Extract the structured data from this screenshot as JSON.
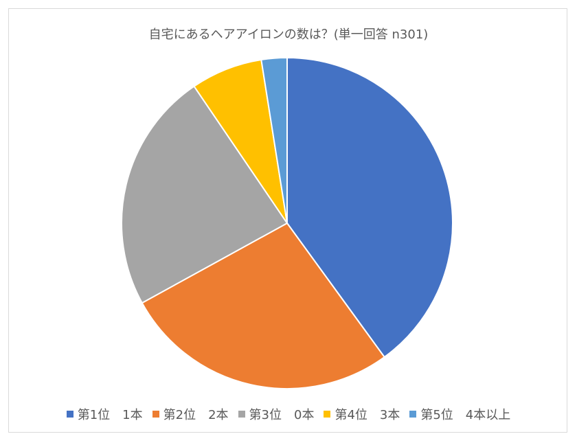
{
  "chart_data": {
    "type": "pie",
    "title": "自宅にあるヘアアイロンの数は？(単一回答 n301)",
    "legend_position": "bottom",
    "start_angle_deg": 0,
    "direction": "clockwise",
    "series": [
      {
        "name": "第1位　1本",
        "value": 40.0,
        "color": "#4472C4"
      },
      {
        "name": "第2位　2本",
        "value": 27.0,
        "color": "#ED7D31"
      },
      {
        "name": "第3位　0本",
        "value": 23.5,
        "color": "#A5A5A5"
      },
      {
        "name": "第4位　3本",
        "value": 7.0,
        "color": "#FFC000"
      },
      {
        "name": "第5位　4本以上",
        "value": 2.5,
        "color": "#5B9BD5"
      }
    ]
  }
}
